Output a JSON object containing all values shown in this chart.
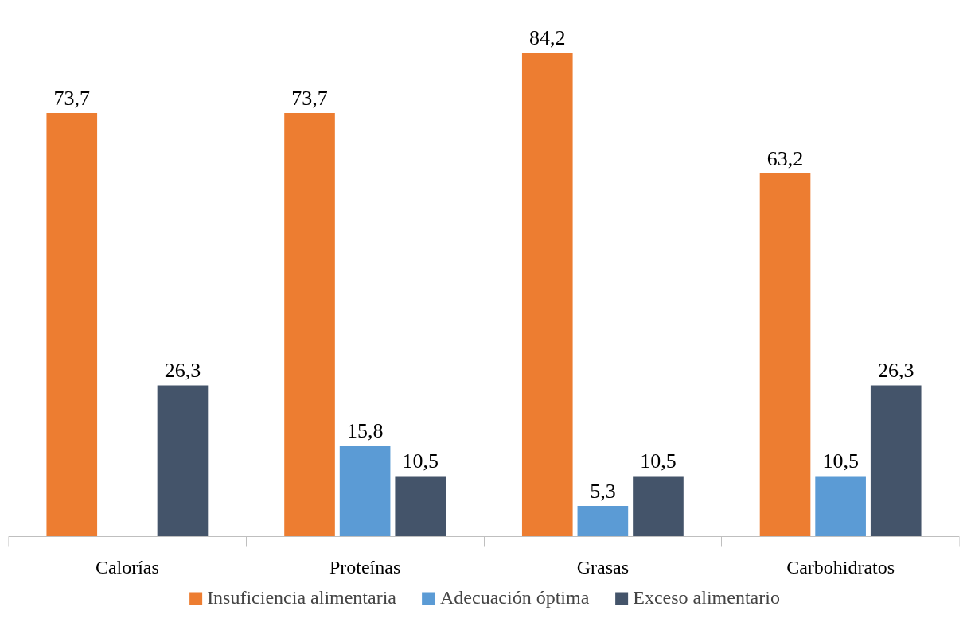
{
  "chart_data": {
    "type": "bar",
    "categories": [
      "Calorías",
      "Proteínas",
      "Grasas",
      "Carbohidratos"
    ],
    "series": [
      {
        "name": "Insuficiencia alimentaria",
        "color": "#ed7d31",
        "values": [
          73.7,
          73.7,
          84.2,
          63.2
        ],
        "value_labels": [
          "73,7",
          "73,7",
          "84,2",
          "63,2"
        ]
      },
      {
        "name": "Adecuación óptima",
        "color": "#5b9bd5",
        "values": [
          null,
          15.8,
          5.3,
          10.5
        ],
        "value_labels": [
          null,
          "15,8",
          "5,3",
          "10,5"
        ]
      },
      {
        "name": "Exceso alimentario",
        "color": "#44546a",
        "values": [
          26.3,
          10.5,
          10.5,
          26.3
        ],
        "value_labels": [
          "26,3",
          "10,5",
          "10,5",
          "26,3"
        ]
      }
    ],
    "legend": "bottom",
    "grid": false
  }
}
